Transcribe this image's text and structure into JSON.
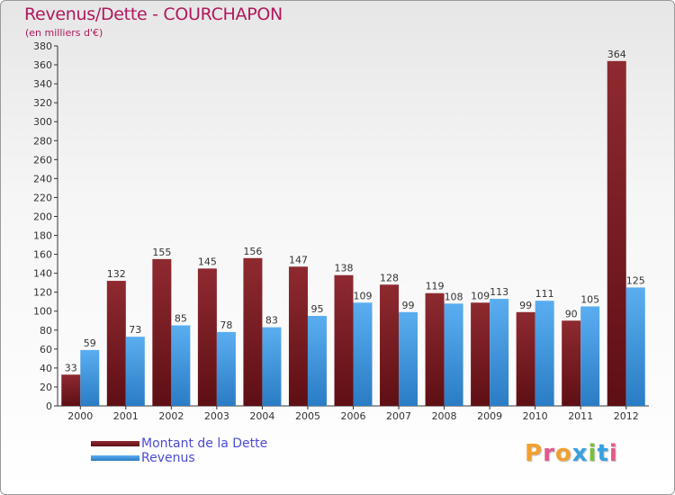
{
  "header": {
    "title": "Revenus/Dette - COURCHAPON",
    "subtitle": "(en milliers d'€)"
  },
  "chart_data": {
    "type": "bar",
    "title": "Revenus/Dette - COURCHAPON",
    "ylabel": "(en milliers d'€)",
    "xlabel": "",
    "categories": [
      "2000",
      "2001",
      "2002",
      "2003",
      "2004",
      "2005",
      "2006",
      "2007",
      "2008",
      "2009",
      "2010",
      "2011",
      "2012"
    ],
    "series": [
      {
        "name": "Montant de la Dette",
        "color": "#7a1d22",
        "values": [
          33,
          132,
          155,
          145,
          156,
          147,
          138,
          128,
          119,
          109,
          99,
          90,
          364
        ]
      },
      {
        "name": "Revenus",
        "color": "#3b93dd",
        "values": [
          59,
          73,
          85,
          78,
          83,
          95,
          109,
          99,
          108,
          113,
          111,
          105,
          125
        ]
      }
    ],
    "ylim": [
      0,
      380
    ],
    "yticks": [
      0,
      20,
      40,
      60,
      80,
      100,
      120,
      140,
      160,
      180,
      200,
      220,
      240,
      260,
      280,
      300,
      320,
      340,
      360,
      380
    ],
    "grid": false,
    "legend": "bottom-left"
  },
  "legend": {
    "items": [
      {
        "label": "Montant de la Dette",
        "color": "#7a1d22"
      },
      {
        "label": "Revenus",
        "color": "#3b93dd"
      }
    ]
  },
  "brand": {
    "letters": [
      "P",
      "r",
      "o",
      "x",
      "i",
      "t",
      "i"
    ],
    "colors": [
      "#f0a030",
      "#e05a8a",
      "#f0a030",
      "#3aa0e0",
      "#7bbf3a",
      "#3aa0e0",
      "#e05a8a"
    ]
  }
}
